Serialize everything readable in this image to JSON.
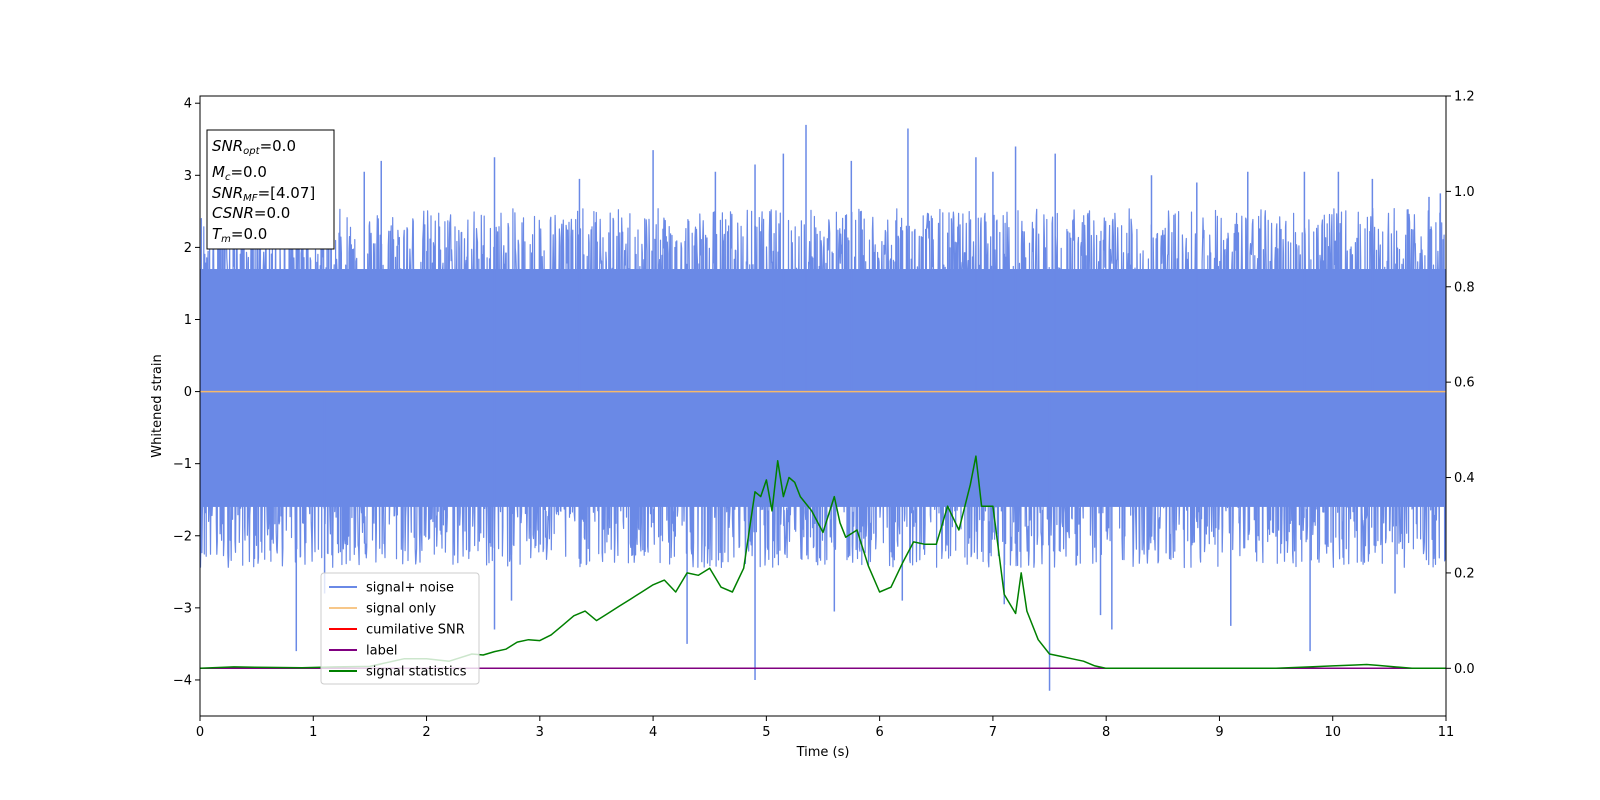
{
  "chart_data": {
    "type": "line",
    "xlabel": "Time (s)",
    "ylabel": "Whitened strain",
    "xlim": [
      0,
      11
    ],
    "ylim": [
      -4.5,
      4.1
    ],
    "y2lim": [
      -0.1,
      1.2
    ],
    "x_ticks": [
      0,
      1,
      2,
      3,
      4,
      5,
      6,
      7,
      8,
      9,
      10,
      11
    ],
    "y_ticks": [
      -4,
      -3,
      -2,
      -1,
      0,
      1,
      2,
      3,
      4
    ],
    "y_tick_labels": [
      "−4",
      "−3",
      "−2",
      "−1",
      "0",
      "1",
      "2",
      "3",
      "4"
    ],
    "y2_ticks": [
      0.0,
      0.2,
      0.4,
      0.6,
      0.8,
      1.0,
      1.2
    ],
    "y2_tick_labels": [
      "0.0",
      "0.2",
      "0.4",
      "0.6",
      "0.8",
      "1.0",
      "1.2"
    ],
    "grid": false,
    "legend_position": "lower-left",
    "info_box": {
      "snr_opt": {
        "base": "SNR",
        "sub": "opt",
        "value": "=0.0"
      },
      "mc": {
        "base": "M",
        "sub": "c",
        "value": "=0.0"
      },
      "snr_mf": {
        "base": "SNR",
        "sub": "MF",
        "value": "=[4.07]"
      },
      "csnr": {
        "base": "CSNR",
        "sub": "",
        "value": "=0.0"
      },
      "tm": {
        "base": "T",
        "sub": "m",
        "value": "=0.0"
      }
    },
    "noise_spikes": {
      "positive": [
        [
          0.85,
          2.1
        ],
        [
          1.45,
          3.05
        ],
        [
          1.6,
          3.2
        ],
        [
          2.6,
          3.25
        ],
        [
          3.35,
          2.95
        ],
        [
          4.0,
          3.35
        ],
        [
          4.55,
          3.05
        ],
        [
          4.9,
          3.15
        ],
        [
          5.15,
          3.3
        ],
        [
          5.35,
          3.7
        ],
        [
          5.75,
          3.2
        ],
        [
          6.25,
          3.65
        ],
        [
          6.85,
          3.25
        ],
        [
          7.0,
          3.05
        ],
        [
          7.2,
          3.4
        ],
        [
          7.55,
          3.3
        ],
        [
          8.4,
          3.0
        ],
        [
          8.8,
          2.9
        ],
        [
          9.25,
          3.05
        ],
        [
          9.75,
          3.05
        ],
        [
          10.05,
          3.05
        ],
        [
          10.35,
          2.95
        ],
        [
          10.85,
          2.7
        ],
        [
          10.95,
          2.75
        ]
      ],
      "negative": [
        [
          0.85,
          -3.6
        ],
        [
          1.1,
          -2.8
        ],
        [
          2.6,
          -3.3
        ],
        [
          2.75,
          -2.9
        ],
        [
          4.3,
          -3.5
        ],
        [
          4.9,
          -4.0
        ],
        [
          5.6,
          -3.05
        ],
        [
          6.2,
          -2.9
        ],
        [
          7.1,
          -2.95
        ],
        [
          7.5,
          -4.15
        ],
        [
          7.95,
          -3.1
        ],
        [
          8.05,
          -3.3
        ],
        [
          9.1,
          -3.25
        ],
        [
          9.8,
          -3.6
        ],
        [
          10.55,
          -2.8
        ]
      ]
    },
    "series": [
      {
        "name": "signal+ noise",
        "axis": "left",
        "color": "#6a89e6",
        "kind": "noise",
        "band_min": -1.6,
        "band_max": 1.7
      },
      {
        "name": "signal only",
        "axis": "left",
        "color": "#f5b96b",
        "x": [
          0,
          11
        ],
        "y": [
          0,
          0
        ]
      },
      {
        "name": "cumilative SNR",
        "axis": "right",
        "color": "#ff0000",
        "x": [
          0,
          11
        ],
        "y": [
          0,
          0
        ]
      },
      {
        "name": "label",
        "axis": "right",
        "color": "#800080",
        "x": [
          0,
          11
        ],
        "y": [
          0,
          0
        ]
      },
      {
        "name": "signal statistics",
        "axis": "right",
        "color": "#008000",
        "x": [
          0,
          0.3,
          0.6,
          0.9,
          1.2,
          1.5,
          1.8,
          2.0,
          2.2,
          2.4,
          2.5,
          2.6,
          2.7,
          2.8,
          2.9,
          3.0,
          3.1,
          3.2,
          3.3,
          3.4,
          3.5,
          3.6,
          3.7,
          3.8,
          3.9,
          4.0,
          4.1,
          4.2,
          4.3,
          4.4,
          4.5,
          4.6,
          4.7,
          4.8,
          4.9,
          4.95,
          5.0,
          5.05,
          5.1,
          5.15,
          5.2,
          5.25,
          5.3,
          5.4,
          5.5,
          5.6,
          5.65,
          5.7,
          5.8,
          5.9,
          6.0,
          6.1,
          6.2,
          6.3,
          6.4,
          6.5,
          6.6,
          6.7,
          6.8,
          6.85,
          6.9,
          7.0,
          7.1,
          7.2,
          7.25,
          7.3,
          7.4,
          7.5,
          7.6,
          7.7,
          7.8,
          7.9,
          8.0,
          8.5,
          9.0,
          9.5,
          9.8,
          10.0,
          10.2,
          10.3,
          10.4,
          10.5,
          10.7,
          11.0
        ],
        "y": [
          0.0,
          0.003,
          0.002,
          0.001,
          0.003,
          0.004,
          0.02,
          0.02,
          0.015,
          0.03,
          0.028,
          0.035,
          0.04,
          0.055,
          0.06,
          0.058,
          0.07,
          0.09,
          0.11,
          0.12,
          0.1,
          0.115,
          0.13,
          0.145,
          0.16,
          0.175,
          0.185,
          0.16,
          0.2,
          0.195,
          0.21,
          0.17,
          0.16,
          0.21,
          0.37,
          0.36,
          0.395,
          0.33,
          0.435,
          0.36,
          0.4,
          0.39,
          0.36,
          0.33,
          0.285,
          0.36,
          0.305,
          0.275,
          0.29,
          0.215,
          0.16,
          0.17,
          0.22,
          0.265,
          0.26,
          0.26,
          0.34,
          0.29,
          0.385,
          0.445,
          0.34,
          0.34,
          0.155,
          0.115,
          0.2,
          0.12,
          0.06,
          0.03,
          0.025,
          0.02,
          0.015,
          0.005,
          0.0,
          0.0,
          0.0,
          0.0,
          0.003,
          0.005,
          0.007,
          0.008,
          0.006,
          0.004,
          0.0,
          0.0
        ]
      }
    ]
  }
}
